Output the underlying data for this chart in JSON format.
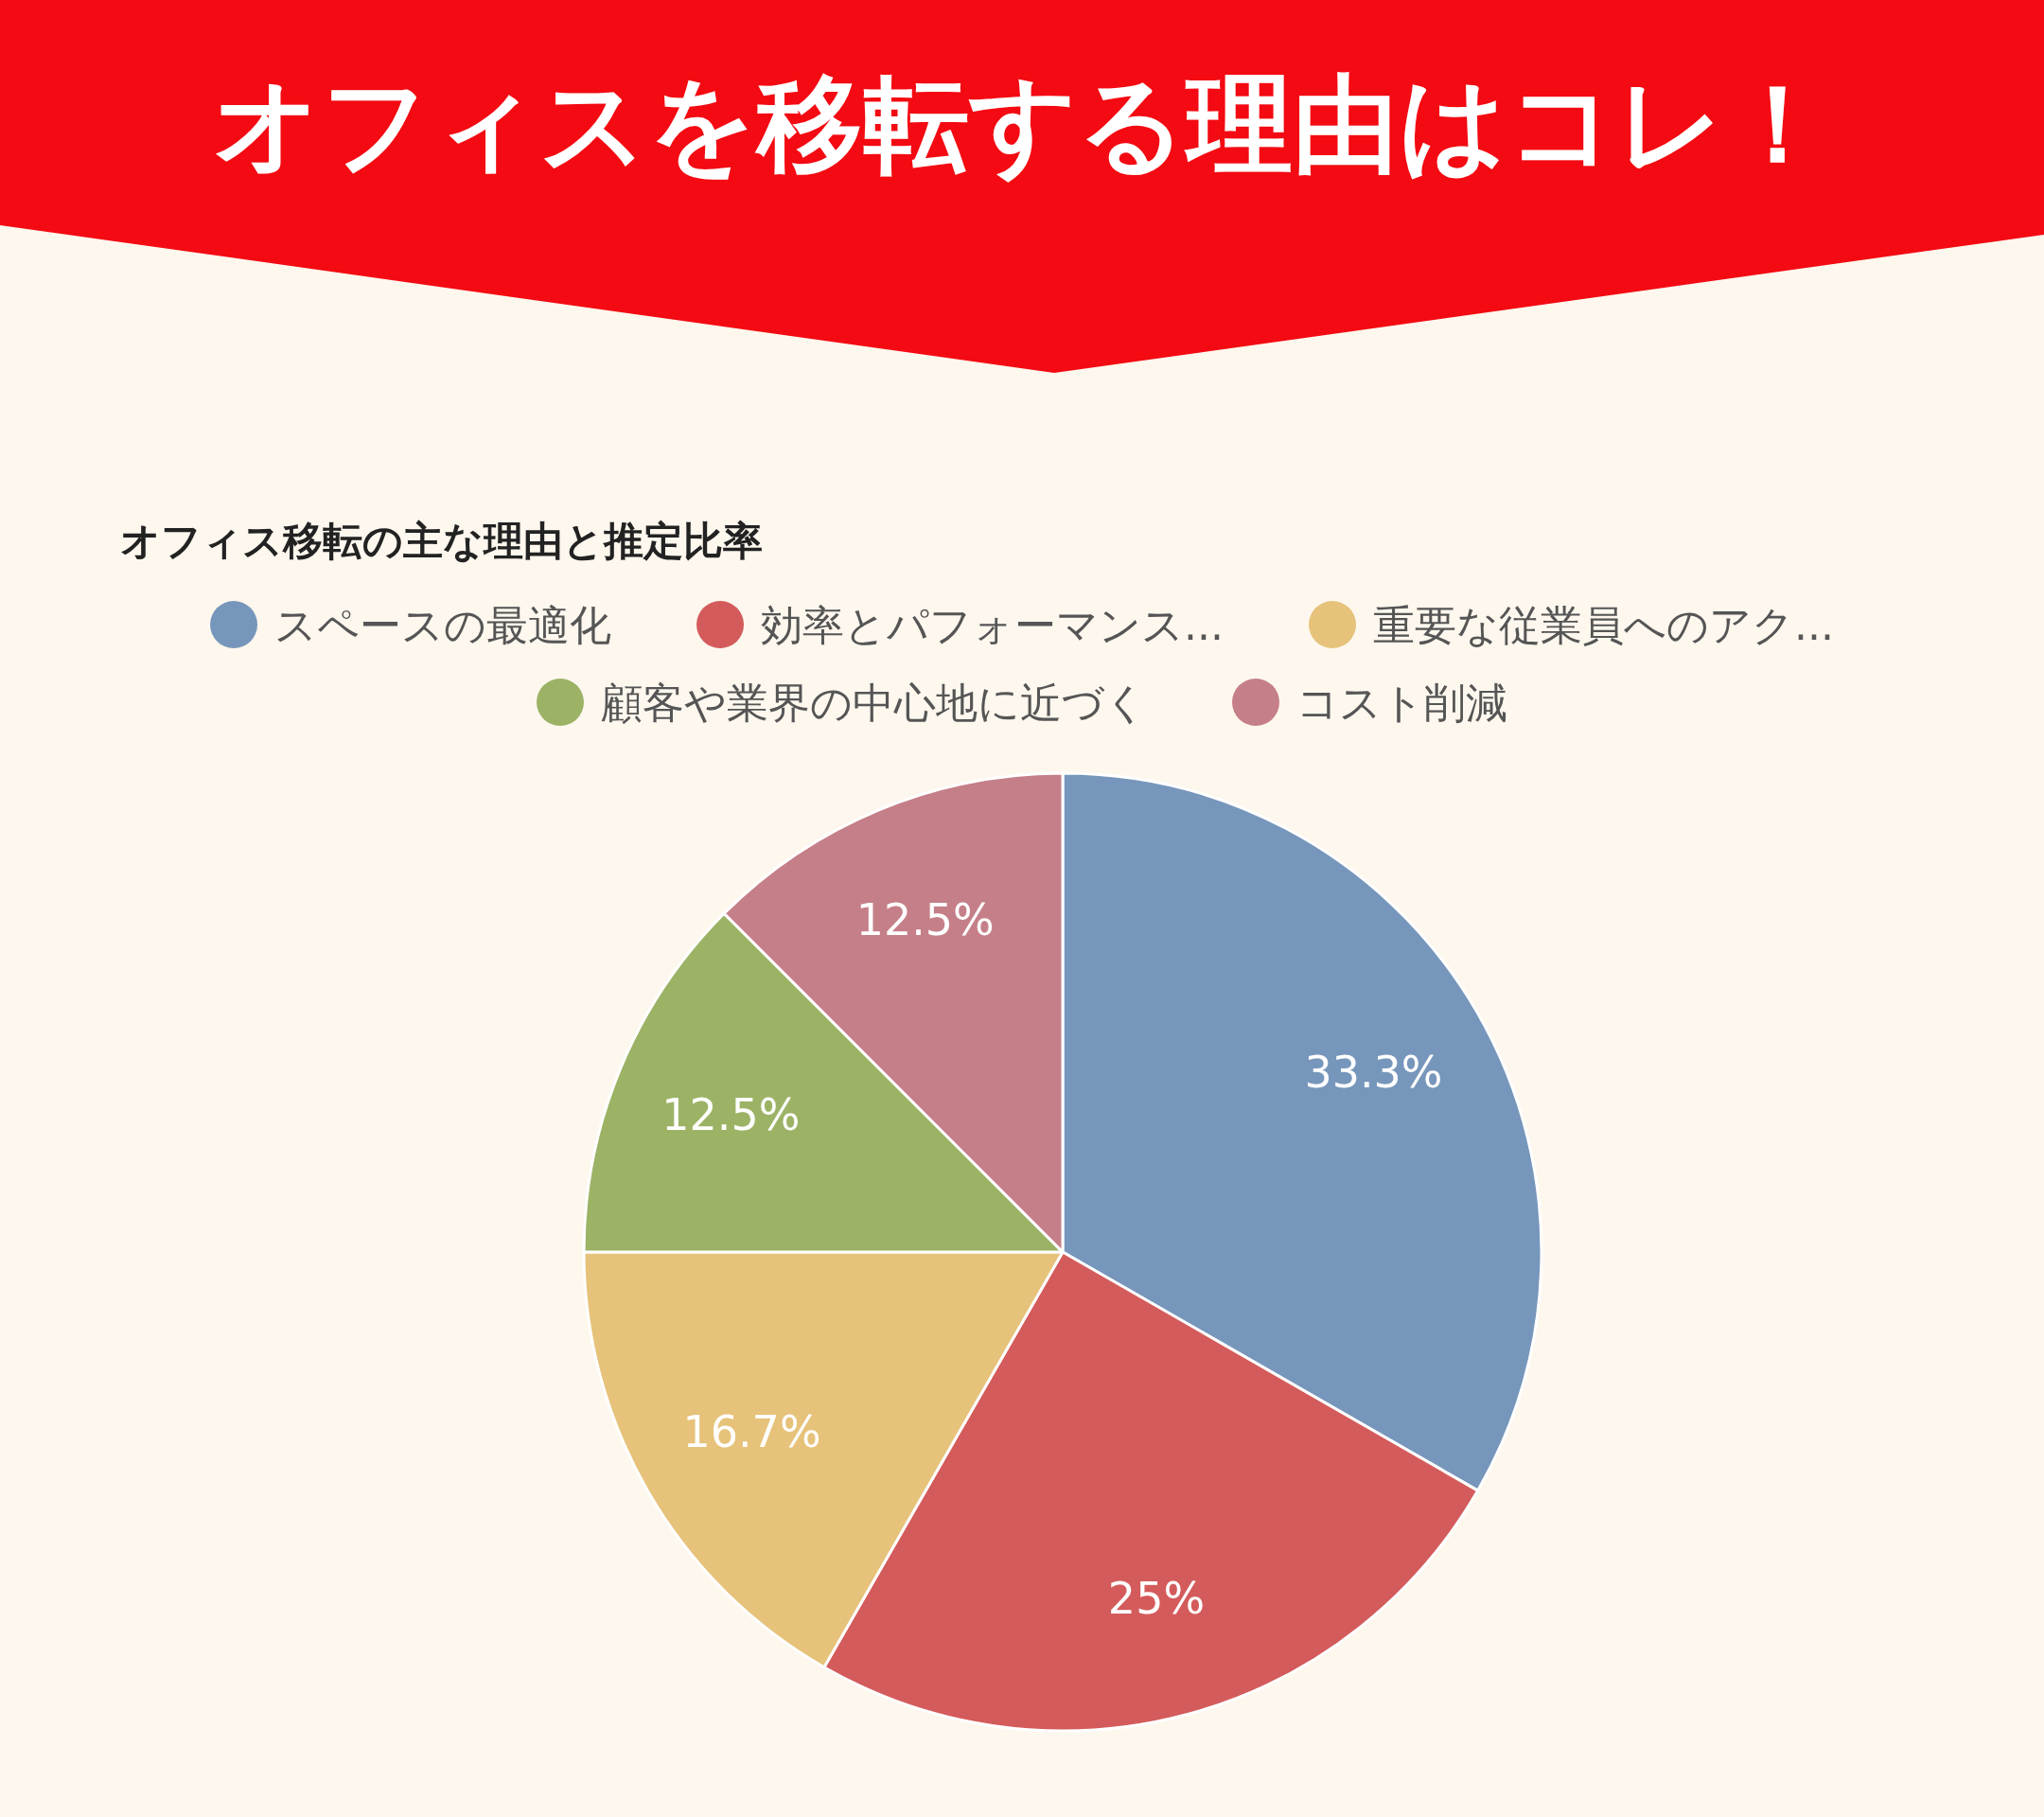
{
  "chart_data": {
    "type": "pie",
    "title": "オフィスを移転する理由はコレ！",
    "subtitle": "オフィス移転の主な理由と推定比率",
    "categories": [
      "スペースの最適化",
      "効率とパフォーマンス...",
      "重要な従業員へのアク...",
      "顧客や業界の中心地に近づく",
      "コスト削減"
    ],
    "values": [
      33.3,
      25,
      16.7,
      12.5,
      12.5
    ],
    "value_labels": [
      "33.3%",
      "25%",
      "16.7%",
      "12.5%",
      "12.5%"
    ],
    "colors": [
      "#7796bb",
      "#d45b5b",
      "#e6c27a",
      "#9cb366",
      "#c57f88"
    ],
    "legend": "top"
  }
}
